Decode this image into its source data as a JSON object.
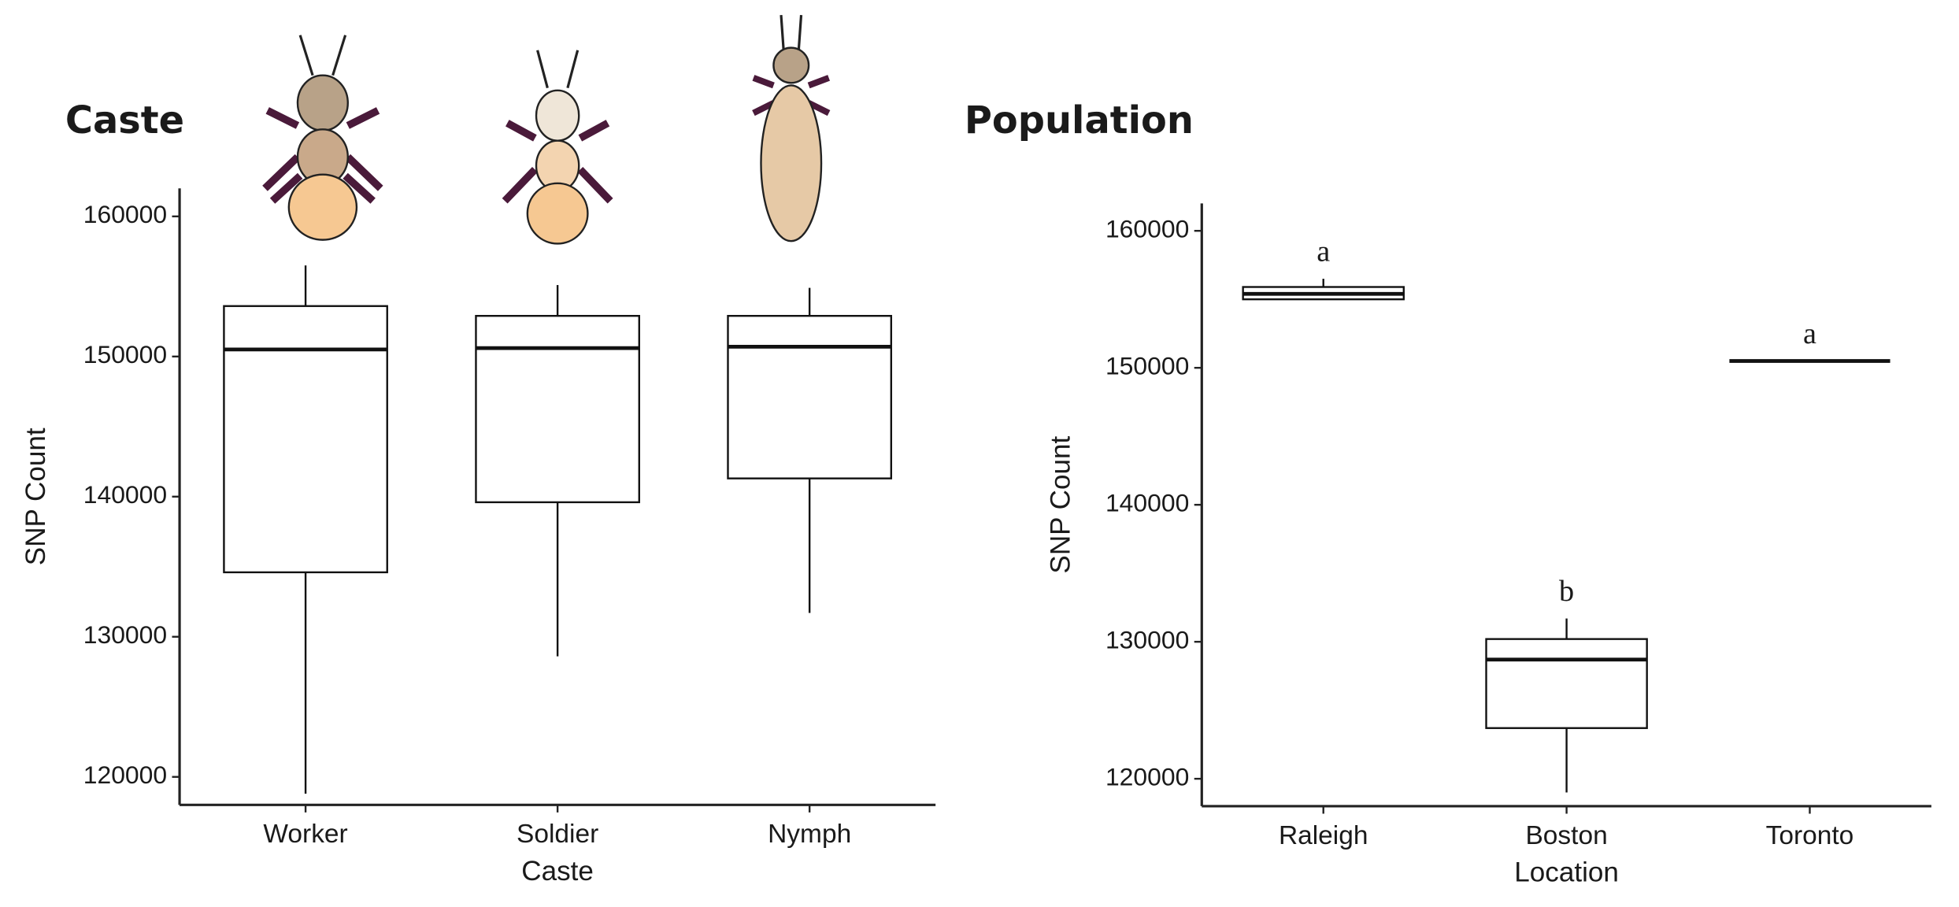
{
  "chart_data": [
    {
      "type": "box",
      "title": "Caste",
      "x_label": "Caste",
      "y_label": "SNP Count",
      "categories": [
        "Worker",
        "Soldier",
        "Nymph"
      ],
      "boxes": [
        {
          "min": 118800,
          "q1": 134600,
          "median": 150500,
          "q3": 153600,
          "max": 156500
        },
        {
          "min": 128600,
          "q1": 139600,
          "median": 150600,
          "q3": 152900,
          "max": 155100
        },
        {
          "min": 131700,
          "q1": 141300,
          "median": 150700,
          "q3": 152900,
          "max": 154900
        }
      ],
      "ylim": [
        118000,
        162000
      ],
      "yticks": [
        120000,
        130000,
        140000,
        150000,
        160000
      ]
    },
    {
      "type": "box",
      "title": "Population",
      "x_label": "Location",
      "y_label": "SNP Count",
      "categories": [
        "Raleigh",
        "Boston",
        "Toronto"
      ],
      "boxes": [
        {
          "min": 155000,
          "q1": 155000,
          "median": 155400,
          "q3": 155900,
          "max": 156500
        },
        {
          "min": 119000,
          "q1": 123700,
          "median": 128700,
          "q3": 130200,
          "max": 131700
        },
        {
          "min": 150500,
          "q1": 150500,
          "median": 150500,
          "q3": 150500,
          "max": 150500
        }
      ],
      "letters": [
        "a",
        "b",
        "a"
      ],
      "ylim": [
        118000,
        162000
      ],
      "yticks": [
        120000,
        130000,
        140000,
        150000,
        160000
      ]
    }
  ]
}
